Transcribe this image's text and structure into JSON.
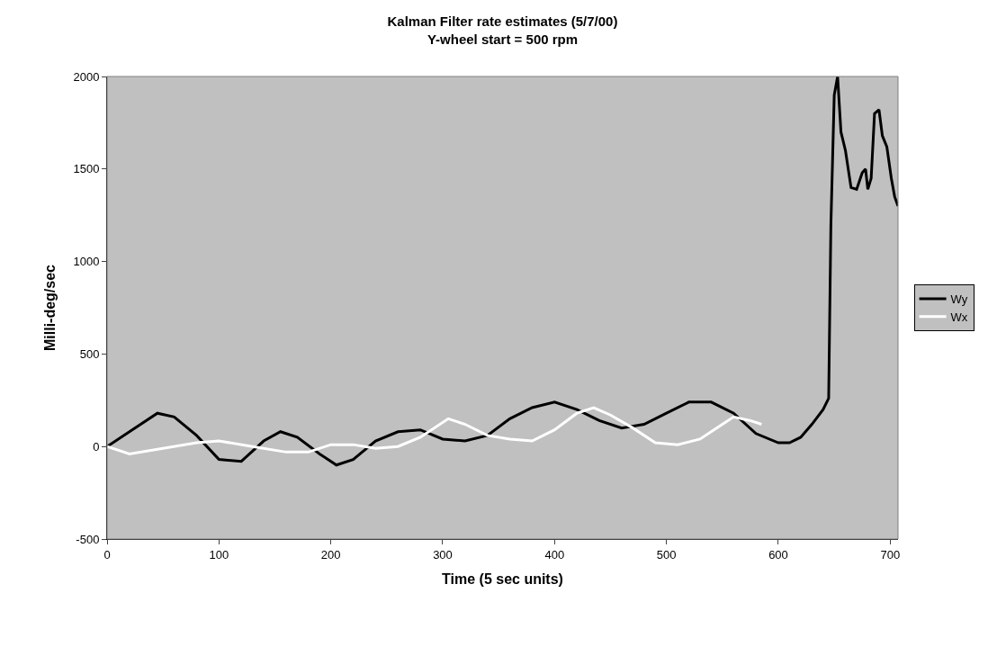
{
  "chart_data": {
    "type": "line",
    "title": "Kalman Filter rate estimates (5/7/00)",
    "subtitle": "Y-wheel start = 500 rpm",
    "xlabel": "Time (5 sec units)",
    "ylabel": "Milli-deg/sec",
    "xlim": [
      0,
      707
    ],
    "xticks": [
      0,
      100,
      200,
      300,
      400,
      500,
      600,
      700
    ],
    "ylim": [
      -500,
      2000
    ],
    "yticks": [
      -500,
      0,
      500,
      1000,
      1500,
      2000
    ],
    "grid": false,
    "legend": "right",
    "marker": "none",
    "line_style": "solid",
    "series": [
      {
        "name": "Wy",
        "color": "#000000",
        "x": [
          0,
          20,
          45,
          60,
          80,
          100,
          120,
          140,
          155,
          170,
          190,
          205,
          220,
          240,
          260,
          280,
          300,
          320,
          340,
          360,
          380,
          400,
          420,
          440,
          460,
          480,
          500,
          520,
          540,
          560,
          580,
          600,
          610,
          620,
          630,
          640,
          645,
          647,
          650,
          653,
          656,
          660,
          665,
          670,
          675,
          678,
          680,
          683,
          686,
          690,
          693,
          697,
          701,
          704,
          707
        ],
        "values": [
          0,
          80,
          180,
          160,
          60,
          -70,
          -80,
          30,
          80,
          50,
          -40,
          -100,
          -70,
          30,
          80,
          90,
          40,
          30,
          60,
          150,
          210,
          240,
          200,
          140,
          100,
          120,
          180,
          240,
          240,
          180,
          70,
          20,
          20,
          50,
          120,
          200,
          260,
          1200,
          1900,
          2000,
          1700,
          1600,
          1400,
          1390,
          1480,
          1500,
          1390,
          1450,
          1800,
          1820,
          1680,
          1620,
          1450,
          1350,
          1300
        ]
      },
      {
        "name": "Wx",
        "color": "#ffffff",
        "x": [
          0,
          20,
          50,
          80,
          100,
          130,
          160,
          180,
          200,
          220,
          240,
          260,
          280,
          305,
          320,
          340,
          360,
          380,
          400,
          420,
          435,
          450,
          470,
          490,
          510,
          530,
          550,
          560,
          575,
          585
        ],
        "values": [
          0,
          -40,
          -10,
          20,
          30,
          0,
          -30,
          -30,
          10,
          10,
          -10,
          0,
          50,
          150,
          120,
          60,
          40,
          30,
          90,
          180,
          210,
          170,
          100,
          20,
          10,
          40,
          120,
          160,
          140,
          120
        ]
      }
    ]
  }
}
